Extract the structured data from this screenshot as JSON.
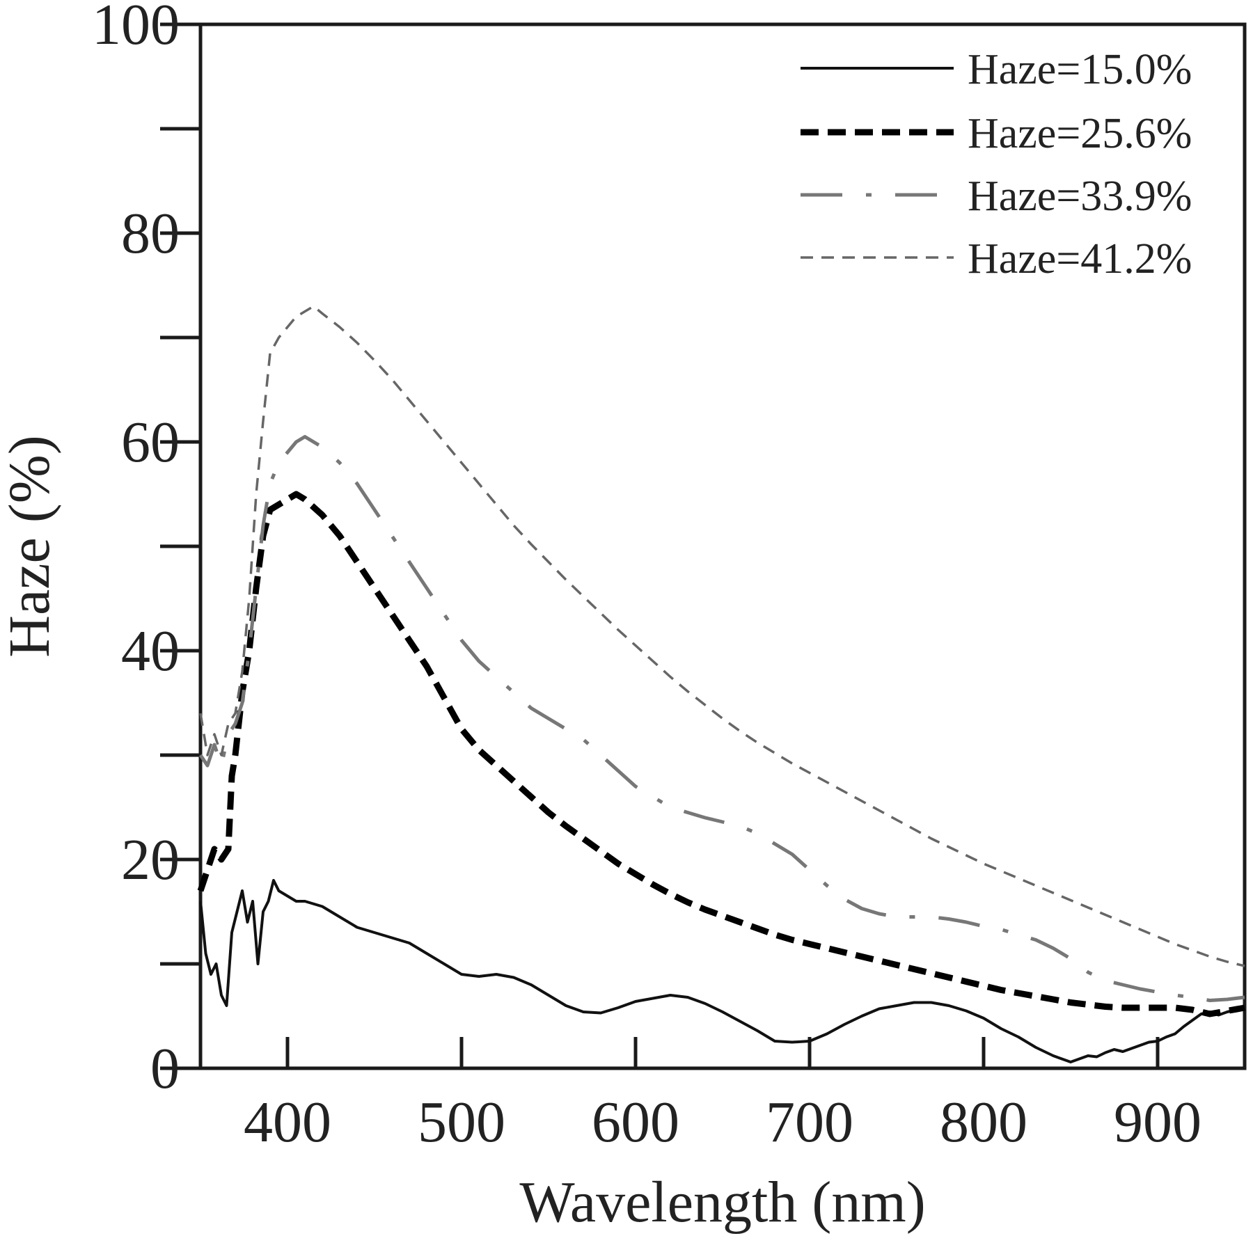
{
  "chart_data": {
    "type": "line",
    "xlabel": "Wavelength (nm)",
    "ylabel": "Haze (%)",
    "xlim": [
      350,
      950
    ],
    "ylim": [
      0,
      100
    ],
    "xticks": [
      400,
      500,
      600,
      700,
      800,
      900
    ],
    "yticks_labeled": [
      0,
      20,
      40,
      60,
      80,
      100
    ],
    "yticks_minor": [
      10,
      30,
      50,
      70,
      90
    ],
    "grid": false,
    "legend_position": "top-right",
    "series": [
      {
        "name": "Haze=15.0%",
        "color": "#111111",
        "style": "solid",
        "points": [
          [
            350,
            16
          ],
          [
            353,
            11
          ],
          [
            356,
            9
          ],
          [
            359,
            10
          ],
          [
            362,
            7
          ],
          [
            365,
            6
          ],
          [
            368,
            13
          ],
          [
            371,
            15
          ],
          [
            374,
            17
          ],
          [
            377,
            14
          ],
          [
            380,
            16
          ],
          [
            383,
            10
          ],
          [
            386,
            15
          ],
          [
            389,
            16
          ],
          [
            392,
            18
          ],
          [
            395,
            17
          ],
          [
            400,
            16.5
          ],
          [
            405,
            16
          ],
          [
            410,
            16
          ],
          [
            420,
            15.5
          ],
          [
            430,
            14.5
          ],
          [
            440,
            13.5
          ],
          [
            450,
            13
          ],
          [
            460,
            12.5
          ],
          [
            470,
            12
          ],
          [
            480,
            11
          ],
          [
            490,
            10
          ],
          [
            500,
            9
          ],
          [
            510,
            8.8
          ],
          [
            520,
            9
          ],
          [
            530,
            8.7
          ],
          [
            540,
            8
          ],
          [
            550,
            7
          ],
          [
            560,
            6
          ],
          [
            570,
            5.4
          ],
          [
            580,
            5.3
          ],
          [
            590,
            5.8
          ],
          [
            600,
            6.4
          ],
          [
            610,
            6.7
          ],
          [
            620,
            7
          ],
          [
            630,
            6.8
          ],
          [
            640,
            6.2
          ],
          [
            650,
            5.4
          ],
          [
            660,
            4.5
          ],
          [
            670,
            3.6
          ],
          [
            680,
            2.6
          ],
          [
            690,
            2.5
          ],
          [
            700,
            2.6
          ],
          [
            710,
            3.3
          ],
          [
            720,
            4.2
          ],
          [
            730,
            5
          ],
          [
            740,
            5.7
          ],
          [
            750,
            6
          ],
          [
            760,
            6.3
          ],
          [
            770,
            6.3
          ],
          [
            780,
            6
          ],
          [
            790,
            5.5
          ],
          [
            800,
            4.8
          ],
          [
            810,
            3.8
          ],
          [
            820,
            3
          ],
          [
            830,
            2
          ],
          [
            840,
            1.2
          ],
          [
            850,
            0.6
          ],
          [
            855,
            0.9
          ],
          [
            860,
            1.2
          ],
          [
            865,
            1.1
          ],
          [
            870,
            1.5
          ],
          [
            875,
            1.8
          ],
          [
            880,
            1.6
          ],
          [
            885,
            1.9
          ],
          [
            890,
            2.2
          ],
          [
            895,
            2.5
          ],
          [
            900,
            2.6
          ],
          [
            905,
            3
          ],
          [
            910,
            3.3
          ],
          [
            915,
            4
          ],
          [
            920,
            4.6
          ],
          [
            925,
            5.2
          ],
          [
            930,
            5.4
          ],
          [
            935,
            5.1
          ],
          [
            940,
            5.4
          ],
          [
            945,
            5.6
          ],
          [
            950,
            5.7
          ]
        ]
      },
      {
        "name": "Haze=25.6%",
        "color": "#000000",
        "style": "heavy-dash",
        "points": [
          [
            350,
            17
          ],
          [
            354,
            19
          ],
          [
            358,
            21
          ],
          [
            362,
            20
          ],
          [
            366,
            21
          ],
          [
            368,
            28
          ],
          [
            370,
            30
          ],
          [
            374,
            36
          ],
          [
            378,
            40
          ],
          [
            382,
            46
          ],
          [
            386,
            51
          ],
          [
            390,
            53.5
          ],
          [
            395,
            54
          ],
          [
            400,
            54.5
          ],
          [
            405,
            55
          ],
          [
            410,
            54.5
          ],
          [
            420,
            53
          ],
          [
            430,
            51
          ],
          [
            440,
            48.5
          ],
          [
            450,
            46
          ],
          [
            460,
            43.5
          ],
          [
            470,
            41
          ],
          [
            480,
            38.5
          ],
          [
            490,
            35.5
          ],
          [
            500,
            32.5
          ],
          [
            510,
            30.5
          ],
          [
            520,
            29
          ],
          [
            530,
            27.5
          ],
          [
            540,
            26
          ],
          [
            550,
            24.5
          ],
          [
            560,
            23.2
          ],
          [
            570,
            22
          ],
          [
            580,
            20.8
          ],
          [
            590,
            19.6
          ],
          [
            600,
            18.6
          ],
          [
            610,
            17.6
          ],
          [
            620,
            16.7
          ],
          [
            630,
            15.9
          ],
          [
            640,
            15.2
          ],
          [
            650,
            14.6
          ],
          [
            660,
            14
          ],
          [
            670,
            13.4
          ],
          [
            680,
            12.8
          ],
          [
            690,
            12.3
          ],
          [
            700,
            11.9
          ],
          [
            710,
            11.5
          ],
          [
            720,
            11.1
          ],
          [
            730,
            10.7
          ],
          [
            740,
            10.3
          ],
          [
            750,
            9.9
          ],
          [
            760,
            9.5
          ],
          [
            770,
            9.1
          ],
          [
            780,
            8.7
          ],
          [
            790,
            8.3
          ],
          [
            800,
            7.9
          ],
          [
            810,
            7.5
          ],
          [
            820,
            7.2
          ],
          [
            830,
            6.9
          ],
          [
            840,
            6.6
          ],
          [
            850,
            6.3
          ],
          [
            860,
            6.1
          ],
          [
            870,
            5.9
          ],
          [
            880,
            5.8
          ],
          [
            890,
            5.8
          ],
          [
            900,
            5.8
          ],
          [
            910,
            5.8
          ],
          [
            920,
            5.6
          ],
          [
            930,
            5.2
          ],
          [
            940,
            5.5
          ],
          [
            950,
            5.8
          ]
        ]
      },
      {
        "name": "Haze=33.9%",
        "color": "#777777",
        "style": "long-dash-dot",
        "points": [
          [
            350,
            30
          ],
          [
            354,
            29
          ],
          [
            358,
            31
          ],
          [
            362,
            29
          ],
          [
            366,
            32
          ],
          [
            370,
            33
          ],
          [
            374,
            35
          ],
          [
            378,
            40
          ],
          [
            382,
            46
          ],
          [
            386,
            52
          ],
          [
            390,
            56
          ],
          [
            395,
            58
          ],
          [
            400,
            59
          ],
          [
            405,
            60
          ],
          [
            410,
            60.5
          ],
          [
            420,
            59.5
          ],
          [
            430,
            58
          ],
          [
            440,
            56
          ],
          [
            450,
            53.5
          ],
          [
            460,
            51
          ],
          [
            470,
            48.5
          ],
          [
            480,
            46
          ],
          [
            490,
            43.5
          ],
          [
            500,
            41
          ],
          [
            510,
            39
          ],
          [
            520,
            37.5
          ],
          [
            530,
            36
          ],
          [
            540,
            34.5
          ],
          [
            550,
            33.5
          ],
          [
            560,
            32.5
          ],
          [
            570,
            31.5
          ],
          [
            580,
            30
          ],
          [
            590,
            28.5
          ],
          [
            600,
            27
          ],
          [
            610,
            26
          ],
          [
            620,
            25
          ],
          [
            630,
            24.5
          ],
          [
            640,
            24
          ],
          [
            650,
            23.6
          ],
          [
            660,
            23.2
          ],
          [
            670,
            22.5
          ],
          [
            680,
            21.5
          ],
          [
            690,
            20.5
          ],
          [
            700,
            19
          ],
          [
            710,
            17.5
          ],
          [
            720,
            16.2
          ],
          [
            730,
            15.3
          ],
          [
            740,
            14.8
          ],
          [
            750,
            14.5
          ],
          [
            760,
            14.5
          ],
          [
            770,
            14.5
          ],
          [
            780,
            14.3
          ],
          [
            790,
            14
          ],
          [
            800,
            13.6
          ],
          [
            810,
            13.3
          ],
          [
            820,
            12.8
          ],
          [
            830,
            12.3
          ],
          [
            840,
            11.5
          ],
          [
            850,
            10.5
          ],
          [
            860,
            9.2
          ],
          [
            870,
            8.4
          ],
          [
            880,
            8
          ],
          [
            890,
            7.6
          ],
          [
            900,
            7.3
          ],
          [
            910,
            7
          ],
          [
            920,
            6.8
          ],
          [
            930,
            6.5
          ],
          [
            940,
            6.6
          ],
          [
            950,
            6.8
          ]
        ]
      },
      {
        "name": "Haze=41.2%",
        "color": "#666666",
        "style": "dashed",
        "points": [
          [
            350,
            34
          ],
          [
            354,
            30
          ],
          [
            358,
            32
          ],
          [
            362,
            30
          ],
          [
            366,
            33
          ],
          [
            370,
            34
          ],
          [
            374,
            38
          ],
          [
            378,
            45
          ],
          [
            382,
            55
          ],
          [
            386,
            62
          ],
          [
            390,
            68.5
          ],
          [
            395,
            70
          ],
          [
            400,
            71
          ],
          [
            405,
            72
          ],
          [
            410,
            72.5
          ],
          [
            415,
            73
          ],
          [
            420,
            72.3
          ],
          [
            430,
            71
          ],
          [
            440,
            69.5
          ],
          [
            450,
            67.8
          ],
          [
            460,
            66
          ],
          [
            470,
            64
          ],
          [
            480,
            62
          ],
          [
            490,
            60
          ],
          [
            500,
            58
          ],
          [
            510,
            56
          ],
          [
            520,
            54
          ],
          [
            530,
            52
          ],
          [
            540,
            50.2
          ],
          [
            550,
            48.5
          ],
          [
            560,
            46.8
          ],
          [
            570,
            45.2
          ],
          [
            580,
            43.6
          ],
          [
            590,
            42
          ],
          [
            600,
            40.5
          ],
          [
            610,
            39
          ],
          [
            620,
            37.5
          ],
          [
            630,
            36.1
          ],
          [
            640,
            34.8
          ],
          [
            650,
            33.5
          ],
          [
            660,
            32.3
          ],
          [
            670,
            31.2
          ],
          [
            680,
            30.2
          ],
          [
            690,
            29.2
          ],
          [
            700,
            28.3
          ],
          [
            710,
            27.4
          ],
          [
            720,
            26.5
          ],
          [
            730,
            25.6
          ],
          [
            740,
            24.7
          ],
          [
            750,
            23.8
          ],
          [
            760,
            22.9
          ],
          [
            770,
            22
          ],
          [
            780,
            21.2
          ],
          [
            790,
            20.4
          ],
          [
            800,
            19.6
          ],
          [
            810,
            18.9
          ],
          [
            820,
            18.2
          ],
          [
            830,
            17.5
          ],
          [
            840,
            16.8
          ],
          [
            850,
            16.1
          ],
          [
            860,
            15.4
          ],
          [
            870,
            14.7
          ],
          [
            880,
            14
          ],
          [
            890,
            13.3
          ],
          [
            900,
            12.6
          ],
          [
            910,
            11.9
          ],
          [
            920,
            11.3
          ],
          [
            930,
            10.7
          ],
          [
            940,
            10.2
          ],
          [
            950,
            9.8
          ]
        ]
      }
    ]
  }
}
